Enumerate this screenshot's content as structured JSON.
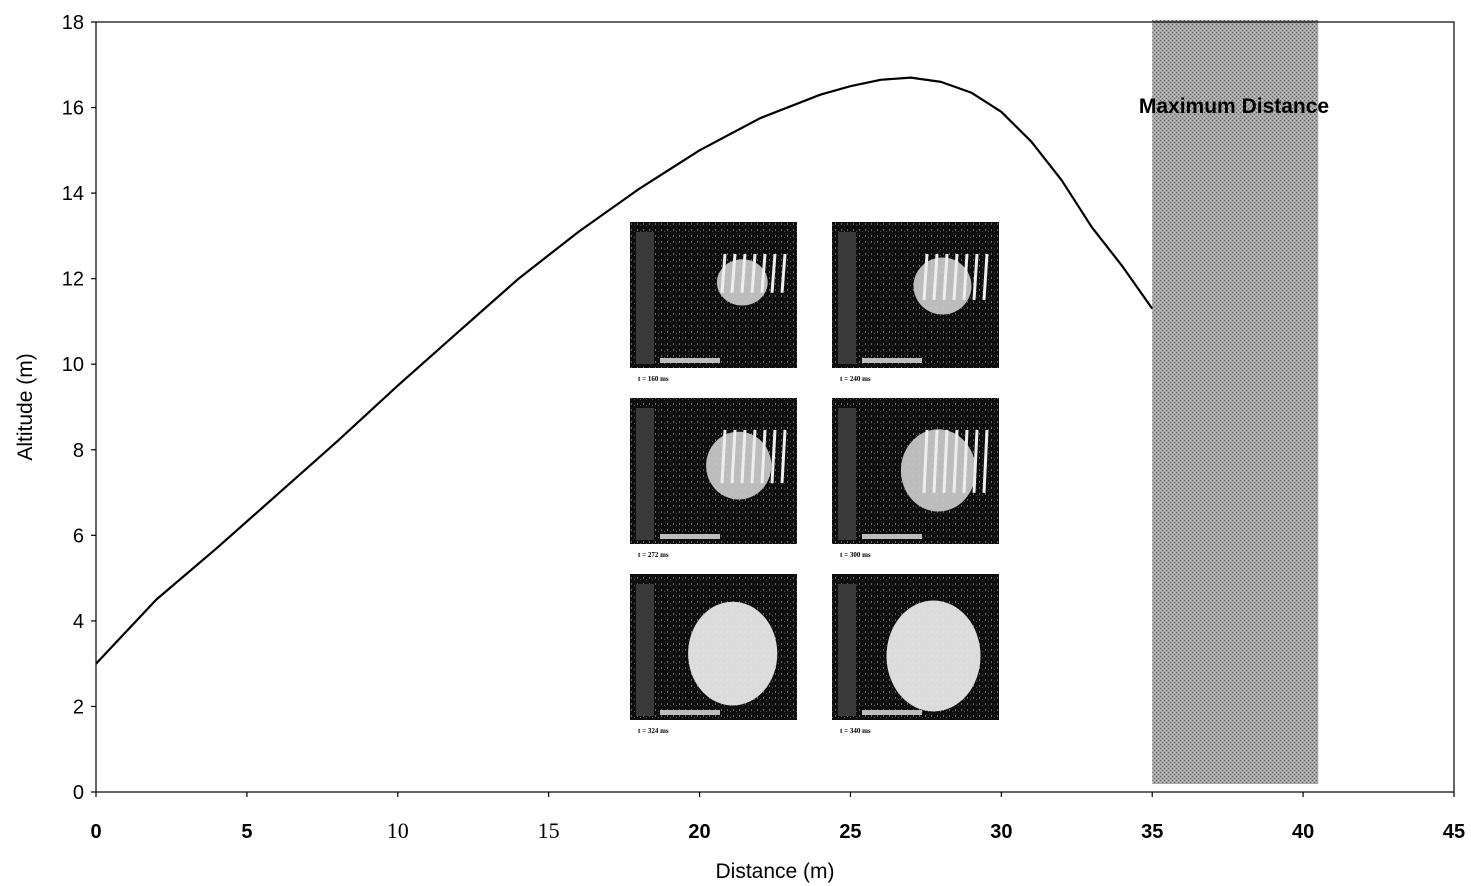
{
  "chart_data": {
    "type": "line",
    "title": "",
    "xlabel": "Distance (m)",
    "ylabel": "Altitude (m)",
    "xlim": [
      0,
      45
    ],
    "ylim": [
      0,
      18
    ],
    "xticks": [
      "0",
      "5",
      "10",
      "15",
      "20",
      "25",
      "30",
      "35",
      "40",
      "45"
    ],
    "yticks": [
      "0",
      "2",
      "4",
      "6",
      "8",
      "10",
      "12",
      "14",
      "16",
      "18"
    ],
    "grid": false,
    "legend": "none",
    "series": [
      {
        "color": "#000000",
        "x": [
          0,
          2,
          4,
          6,
          8,
          10,
          12,
          14,
          16,
          18,
          20,
          22,
          24,
          25,
          26,
          27,
          28,
          29,
          30,
          31,
          32,
          33,
          34,
          35
        ],
        "y": [
          3.0,
          4.5,
          5.7,
          6.95,
          8.2,
          9.5,
          10.75,
          12.0,
          13.1,
          14.1,
          15.0,
          15.75,
          16.3,
          16.5,
          16.65,
          16.7,
          16.6,
          16.35,
          15.9,
          15.2,
          14.3,
          13.2,
          12.3,
          11.3
        ]
      }
    ],
    "shaded_region": {
      "label": "Maximum Distance",
      "x_range": [
        35,
        40.5
      ],
      "color": "#9a9a9a"
    },
    "inset_frames": [
      {
        "caption": "t = 160 ms",
        "level": 0.18
      },
      {
        "caption": "t = 240 ms",
        "level": 0.3
      },
      {
        "caption": "t = 272 ms",
        "level": 0.42
      },
      {
        "caption": "t = 300 ms",
        "level": 0.58
      },
      {
        "caption": "t = 324 ms",
        "level": 0.82
      },
      {
        "caption": "t = 340 ms",
        "level": 0.9
      }
    ]
  }
}
